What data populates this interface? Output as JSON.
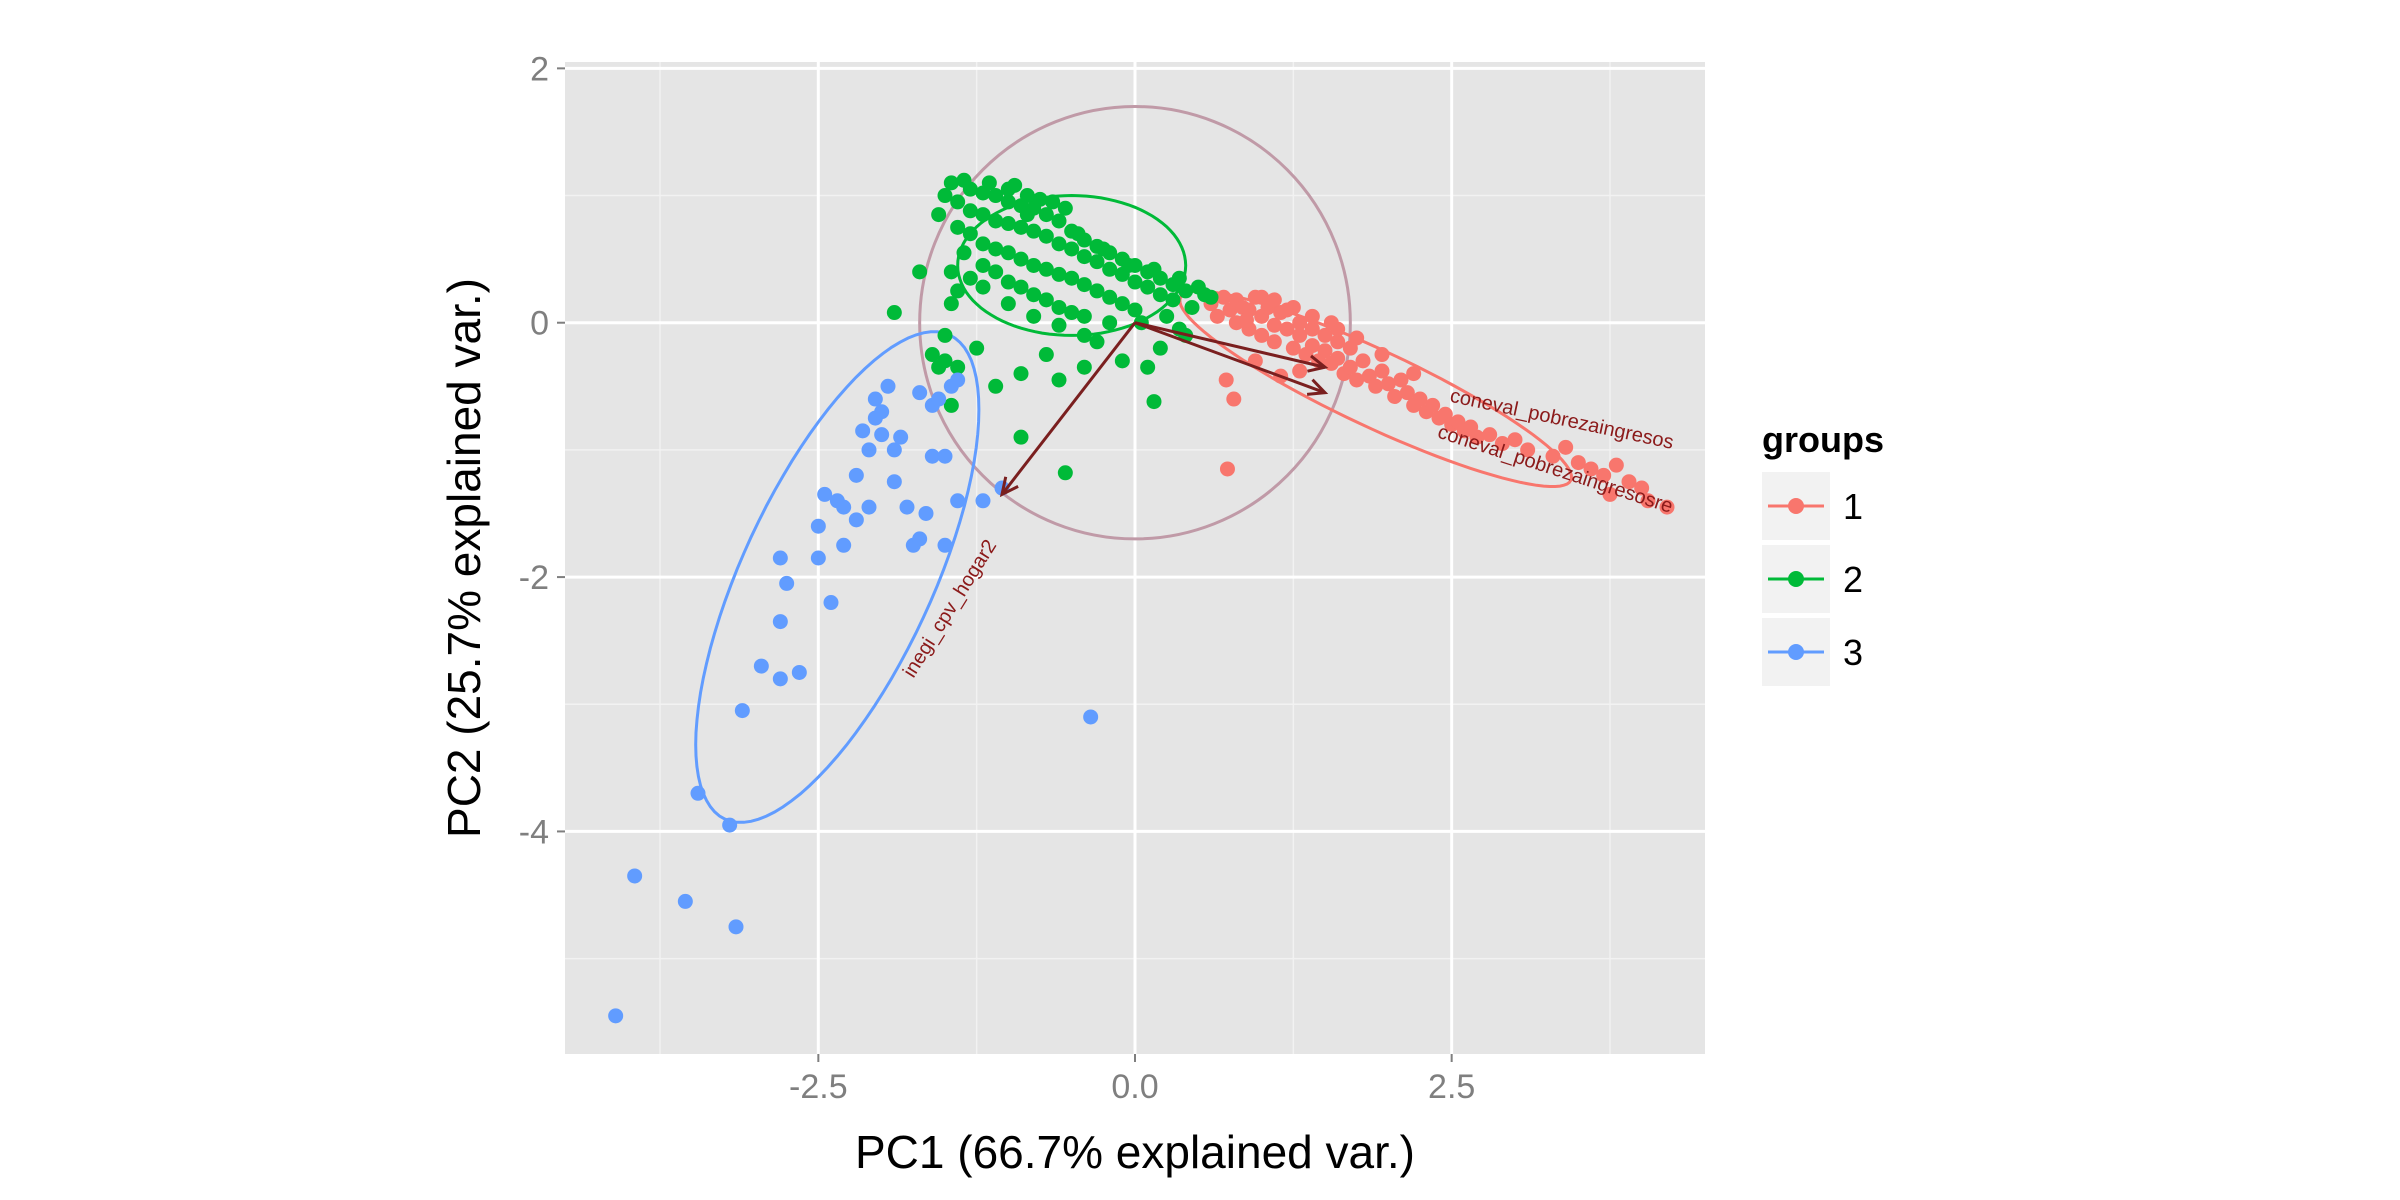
{
  "chart_data": {
    "type": "scatter",
    "xlabel": "PC1 (66.7% explained var.)",
    "ylabel": "PC2 (25.7% explained var.)",
    "xlim": [
      -4.5,
      4.5
    ],
    "ylim": [
      -5.75,
      2.05
    ],
    "x_ticks": [
      {
        "value": -2.5,
        "label": "-2.5"
      },
      {
        "value": 0.0,
        "label": "0.0"
      },
      {
        "value": 2.5,
        "label": "2.5"
      }
    ],
    "y_ticks": [
      {
        "value": 2,
        "label": "2"
      },
      {
        "value": 0,
        "label": "0"
      },
      {
        "value": -2,
        "label": "-2"
      },
      {
        "value": -4,
        "label": "-4"
      }
    ],
    "grid": true,
    "background": "#e5e5e5",
    "legend": {
      "title": "groups",
      "position": "right",
      "items": [
        {
          "label": "1",
          "color": "#f8766d"
        },
        {
          "label": "2",
          "color": "#00ba38"
        },
        {
          "label": "3",
          "color": "#619cff"
        }
      ]
    },
    "series": [
      {
        "name": "1",
        "color": "#f8766d",
        "points": [
          [
            0.6,
            0.15
          ],
          [
            0.65,
            0.05
          ],
          [
            0.7,
            0.2
          ],
          [
            0.75,
            0.1
          ],
          [
            0.8,
            0.0
          ],
          [
            0.8,
            0.18
          ],
          [
            0.85,
            0.12
          ],
          [
            0.9,
            -0.05
          ],
          [
            0.9,
            0.1
          ],
          [
            0.95,
            0.2
          ],
          [
            1.0,
            0.05
          ],
          [
            1.0,
            -0.1
          ],
          [
            1.05,
            0.12
          ],
          [
            1.1,
            -0.02
          ],
          [
            1.1,
            -0.15
          ],
          [
            1.15,
            0.08
          ],
          [
            1.2,
            -0.05
          ],
          [
            1.2,
            0.1
          ],
          [
            1.25,
            -0.2
          ],
          [
            1.3,
            0.0
          ],
          [
            1.3,
            -0.1
          ],
          [
            1.35,
            -0.25
          ],
          [
            1.4,
            -0.05
          ],
          [
            1.4,
            -0.18
          ],
          [
            1.45,
            -0.3
          ],
          [
            1.5,
            -0.1
          ],
          [
            1.5,
            -0.22
          ],
          [
            1.55,
            -0.32
          ],
          [
            1.6,
            -0.15
          ],
          [
            1.6,
            -0.28
          ],
          [
            1.65,
            -0.4
          ],
          [
            1.7,
            -0.2
          ],
          [
            1.7,
            -0.35
          ],
          [
            1.75,
            -0.45
          ],
          [
            1.8,
            -0.3
          ],
          [
            1.85,
            -0.42
          ],
          [
            1.9,
            -0.5
          ],
          [
            1.95,
            -0.38
          ],
          [
            2.0,
            -0.48
          ],
          [
            2.05,
            -0.58
          ],
          [
            2.1,
            -0.45
          ],
          [
            2.15,
            -0.55
          ],
          [
            2.2,
            -0.65
          ],
          [
            2.25,
            -0.6
          ],
          [
            2.3,
            -0.7
          ],
          [
            2.35,
            -0.65
          ],
          [
            2.4,
            -0.75
          ],
          [
            2.45,
            -0.72
          ],
          [
            2.5,
            -0.8
          ],
          [
            2.55,
            -0.78
          ],
          [
            2.6,
            -0.85
          ],
          [
            2.65,
            -0.82
          ],
          [
            2.7,
            -0.9
          ],
          [
            2.8,
            -0.88
          ],
          [
            2.9,
            -0.95
          ],
          [
            3.0,
            -0.92
          ],
          [
            3.1,
            -1.0
          ],
          [
            3.3,
            -1.05
          ],
          [
            3.4,
            -0.98
          ],
          [
            3.5,
            -1.1
          ],
          [
            3.6,
            -1.15
          ],
          [
            3.7,
            -1.2
          ],
          [
            3.75,
            -1.35
          ],
          [
            3.8,
            -1.12
          ],
          [
            3.9,
            -1.25
          ],
          [
            4.0,
            -1.3
          ],
          [
            4.05,
            -1.4
          ],
          [
            4.2,
            -1.45
          ],
          [
            1.0,
            0.2
          ],
          [
            1.1,
            0.18
          ],
          [
            1.25,
            0.12
          ],
          [
            1.4,
            0.05
          ],
          [
            1.6,
            -0.05
          ],
          [
            1.75,
            -0.12
          ],
          [
            0.72,
            -0.45
          ],
          [
            0.78,
            -0.6
          ],
          [
            0.73,
            -1.15
          ],
          [
            0.95,
            -0.3
          ],
          [
            1.15,
            -0.42
          ],
          [
            1.3,
            -0.38
          ],
          [
            0.88,
            0.02
          ],
          [
            1.55,
            0.0
          ],
          [
            1.95,
            -0.25
          ],
          [
            2.2,
            -0.4
          ]
        ]
      },
      {
        "name": "2",
        "color": "#00ba38",
        "points": [
          [
            -1.45,
            1.1
          ],
          [
            -1.35,
            1.12
          ],
          [
            -1.3,
            1.05
          ],
          [
            -1.2,
            1.02
          ],
          [
            -1.1,
            1.0
          ],
          [
            -1.0,
            0.95
          ],
          [
            -0.9,
            0.92
          ],
          [
            -0.8,
            0.9
          ],
          [
            -0.7,
            0.85
          ],
          [
            -0.6,
            0.8
          ],
          [
            -0.5,
            0.72
          ],
          [
            -0.4,
            0.65
          ],
          [
            -0.3,
            0.6
          ],
          [
            -0.2,
            0.55
          ],
          [
            -0.1,
            0.5
          ],
          [
            0.0,
            0.45
          ],
          [
            0.1,
            0.4
          ],
          [
            0.2,
            0.35
          ],
          [
            0.3,
            0.3
          ],
          [
            0.4,
            0.25
          ],
          [
            -1.4,
            0.95
          ],
          [
            -1.3,
            0.88
          ],
          [
            -1.2,
            0.85
          ],
          [
            -1.1,
            0.8
          ],
          [
            -1.0,
            0.78
          ],
          [
            -0.9,
            0.75
          ],
          [
            -0.8,
            0.72
          ],
          [
            -0.7,
            0.68
          ],
          [
            -0.6,
            0.62
          ],
          [
            -0.5,
            0.58
          ],
          [
            -0.4,
            0.52
          ],
          [
            -0.3,
            0.48
          ],
          [
            -0.2,
            0.42
          ],
          [
            -0.1,
            0.38
          ],
          [
            0.0,
            0.32
          ],
          [
            0.1,
            0.28
          ],
          [
            0.2,
            0.22
          ],
          [
            0.3,
            0.18
          ],
          [
            -1.4,
            0.75
          ],
          [
            -1.3,
            0.7
          ],
          [
            -1.2,
            0.62
          ],
          [
            -1.1,
            0.58
          ],
          [
            -1.0,
            0.55
          ],
          [
            -0.9,
            0.5
          ],
          [
            -0.8,
            0.45
          ],
          [
            -0.7,
            0.42
          ],
          [
            -0.6,
            0.38
          ],
          [
            -0.5,
            0.35
          ],
          [
            -0.4,
            0.3
          ],
          [
            -0.3,
            0.25
          ],
          [
            -0.2,
            0.2
          ],
          [
            -0.1,
            0.15
          ],
          [
            0.0,
            0.1
          ],
          [
            -1.35,
            0.55
          ],
          [
            -1.2,
            0.45
          ],
          [
            -1.1,
            0.4
          ],
          [
            -1.0,
            0.32
          ],
          [
            -0.9,
            0.28
          ],
          [
            -0.8,
            0.22
          ],
          [
            -0.7,
            0.18
          ],
          [
            -0.6,
            0.12
          ],
          [
            -0.5,
            0.08
          ],
          [
            -0.4,
            0.05
          ],
          [
            -1.3,
            0.35
          ],
          [
            -1.2,
            0.28
          ],
          [
            -1.0,
            0.15
          ],
          [
            -0.8,
            0.05
          ],
          [
            -0.6,
            -0.02
          ],
          [
            -0.4,
            -0.1
          ],
          [
            -1.45,
            0.4
          ],
          [
            -1.4,
            0.25
          ],
          [
            -1.45,
            0.15
          ],
          [
            -1.5,
            1.0
          ],
          [
            -1.55,
            0.85
          ],
          [
            -0.95,
            1.08
          ],
          [
            -0.85,
            1.0
          ],
          [
            -0.75,
            0.97
          ],
          [
            -0.65,
            0.95
          ],
          [
            -0.55,
            0.9
          ],
          [
            -1.9,
            0.08
          ],
          [
            -1.7,
            0.4
          ],
          [
            -1.5,
            -0.1
          ],
          [
            -1.6,
            -0.25
          ],
          [
            -1.5,
            -0.3
          ],
          [
            -1.4,
            -0.35
          ],
          [
            -1.45,
            -0.65
          ],
          [
            -1.1,
            -0.5
          ],
          [
            -0.9,
            -0.9
          ],
          [
            -0.9,
            -0.4
          ],
          [
            -0.6,
            -0.45
          ],
          [
            -0.4,
            -0.35
          ],
          [
            -0.3,
            -0.15
          ],
          [
            -0.1,
            -0.3
          ],
          [
            0.1,
            -0.35
          ],
          [
            0.2,
            -0.2
          ],
          [
            0.35,
            -0.05
          ],
          [
            0.45,
            0.12
          ],
          [
            0.55,
            0.22
          ],
          [
            0.15,
            -0.62
          ],
          [
            -0.55,
            -1.18
          ],
          [
            -1.55,
            -0.35
          ],
          [
            -1.25,
            -0.2
          ],
          [
            -0.7,
            -0.25
          ],
          [
            -0.2,
            0.0
          ],
          [
            0.05,
            0.0
          ],
          [
            0.25,
            0.05
          ],
          [
            0.4,
            -0.1
          ],
          [
            -1.0,
            1.05
          ],
          [
            -1.15,
            1.1
          ],
          [
            -0.85,
            0.85
          ],
          [
            -0.45,
            0.7
          ],
          [
            -0.25,
            0.58
          ],
          [
            -0.05,
            0.45
          ],
          [
            0.15,
            0.42
          ],
          [
            0.35,
            0.35
          ],
          [
            0.5,
            0.28
          ],
          [
            0.6,
            0.2
          ]
        ]
      },
      {
        "name": "3",
        "color": "#619cff",
        "points": [
          [
            -4.1,
            -5.45
          ],
          [
            -3.95,
            -4.35
          ],
          [
            -3.55,
            -4.55
          ],
          [
            -3.45,
            -3.7
          ],
          [
            -3.2,
            -3.95
          ],
          [
            -3.15,
            -4.75
          ],
          [
            -3.1,
            -3.05
          ],
          [
            -2.95,
            -2.7
          ],
          [
            -2.8,
            -2.8
          ],
          [
            -2.8,
            -2.35
          ],
          [
            -2.65,
            -2.75
          ],
          [
            -2.8,
            -1.85
          ],
          [
            -2.75,
            -2.05
          ],
          [
            -2.5,
            -1.85
          ],
          [
            -2.45,
            -1.35
          ],
          [
            -2.5,
            -1.6
          ],
          [
            -2.4,
            -2.2
          ],
          [
            -2.35,
            -1.4
          ],
          [
            -2.3,
            -1.75
          ],
          [
            -2.2,
            -1.2
          ],
          [
            -2.2,
            -1.55
          ],
          [
            -2.15,
            -0.85
          ],
          [
            -2.1,
            -1.0
          ],
          [
            -2.05,
            -0.6
          ],
          [
            -2.05,
            -0.75
          ],
          [
            -2.0,
            -0.7
          ],
          [
            -1.95,
            -0.5
          ],
          [
            -1.9,
            -1.0
          ],
          [
            -1.9,
            -1.25
          ],
          [
            -1.85,
            -0.9
          ],
          [
            -1.8,
            -1.45
          ],
          [
            -1.75,
            -1.75
          ],
          [
            -1.7,
            -0.55
          ],
          [
            -1.7,
            -1.7
          ],
          [
            -1.65,
            -1.5
          ],
          [
            -1.6,
            -0.65
          ],
          [
            -1.6,
            -1.05
          ],
          [
            -1.55,
            -0.6
          ],
          [
            -1.5,
            -1.75
          ],
          [
            -1.5,
            -1.05
          ],
          [
            -1.45,
            -0.5
          ],
          [
            -1.4,
            -0.45
          ],
          [
            -1.4,
            -1.4
          ],
          [
            -1.2,
            -1.4
          ],
          [
            -1.05,
            -1.3
          ],
          [
            -0.35,
            -3.1
          ],
          [
            -2.1,
            -1.45
          ],
          [
            -2.0,
            -0.88
          ],
          [
            -2.3,
            -1.45
          ]
        ]
      }
    ],
    "ellipses": [
      {
        "group": "1",
        "color": "#f8766d",
        "cx": 1.9,
        "cy": -0.52,
        "rx": 1.7,
        "ry": 0.3,
        "angle_deg": -25
      },
      {
        "group": "2",
        "color": "#00ba38",
        "cx": -0.5,
        "cy": 0.45,
        "rx": 0.9,
        "ry": 0.55,
        "angle_deg": 0
      },
      {
        "group": "3",
        "color": "#619cff",
        "cx": -2.35,
        "cy": -2.0,
        "rx": 2.1,
        "ry": 0.75,
        "angle_deg": 65
      }
    ],
    "circle": {
      "cx": 0,
      "cy": 0,
      "r": 1.7,
      "color": "#c09aa7"
    },
    "loadings": [
      {
        "name": "inegi_cpv_hogar2",
        "x": -1.05,
        "y": -1.35
      },
      {
        "name": "coneval_pobrezaingresos",
        "x": 1.5,
        "y": -0.35
      },
      {
        "name": "coneval_pobrezaingresosre",
        "x": 1.5,
        "y": -0.55
      }
    ],
    "loading_labels": [
      {
        "text": "inegi_cpv_hogar2",
        "x": -1.75,
        "y": -2.8,
        "angle_deg": -58
      },
      {
        "text": "coneval_pobrezaingresos",
        "x": 2.48,
        "y": -0.62,
        "angle_deg": 12
      },
      {
        "text": "coneval_pobrezaingresosre",
        "x": 2.38,
        "y": -0.9,
        "angle_deg": 18
      }
    ],
    "arrow_color": "#7a1f1f"
  }
}
